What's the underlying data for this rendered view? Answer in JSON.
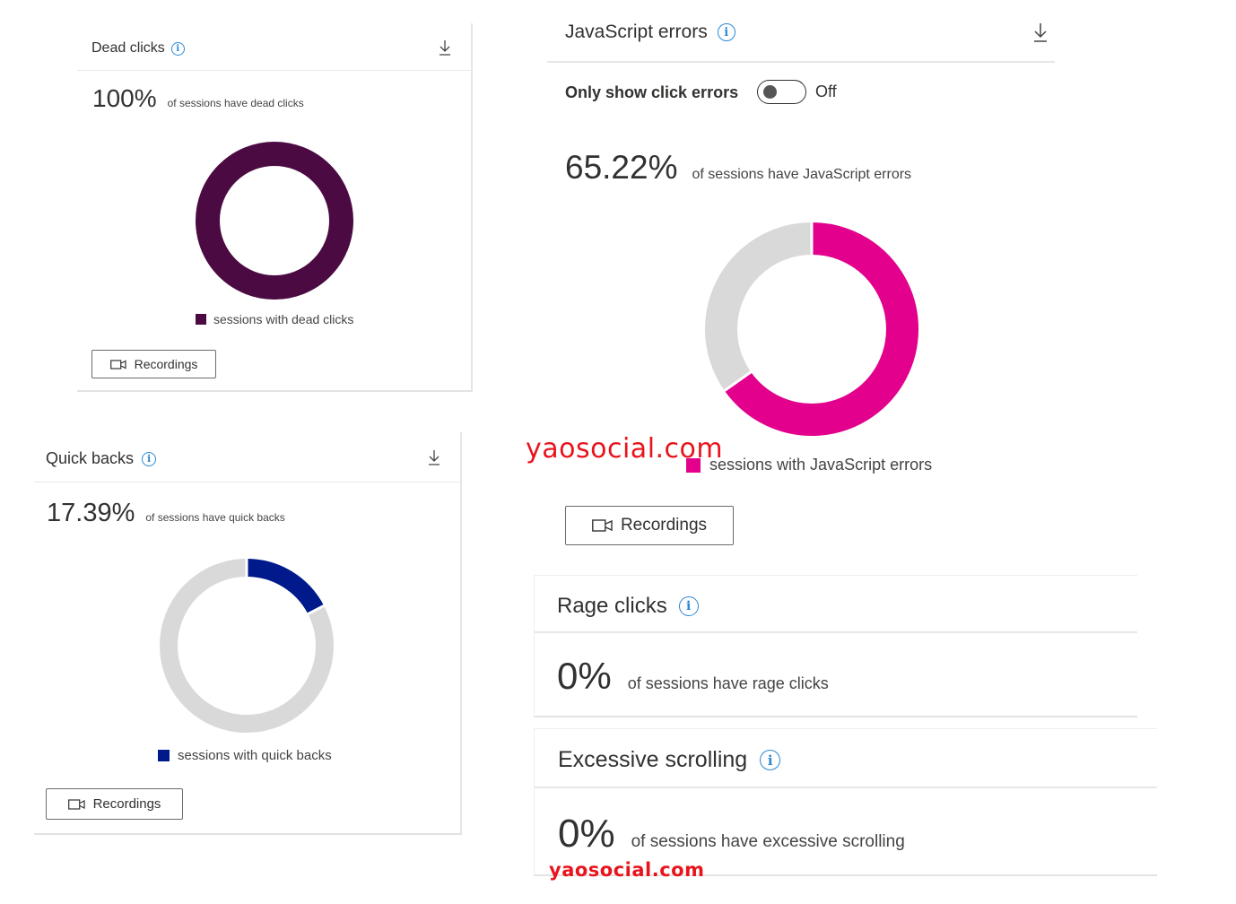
{
  "dead_clicks": {
    "title": "Dead clicks",
    "stat_value": "100%",
    "stat_text": "of sessions have dead clicks",
    "legend": "sessions with dead clicks",
    "button": "Recordings",
    "color": "#4b0a42"
  },
  "quick_backs": {
    "title": "Quick backs",
    "stat_value": "17.39%",
    "stat_text": "of sessions have quick backs",
    "legend": "sessions with quick backs",
    "button": "Recordings",
    "color": "#001a8c"
  },
  "js_errors": {
    "title": "JavaScript errors",
    "toggle_label": "Only show click errors",
    "toggle_state": "Off",
    "stat_value": "65.22%",
    "stat_text": "of sessions have JavaScript errors",
    "legend": "sessions with JavaScript errors",
    "button": "Recordings",
    "color": "#e3008c"
  },
  "rage_clicks": {
    "title": "Rage clicks",
    "stat_value": "0%",
    "stat_text": "of sessions have rage clicks"
  },
  "excessive_scrolling": {
    "title": "Excessive scrolling",
    "stat_value": "0%",
    "stat_text": "of sessions have excessive scrolling"
  },
  "watermark": "yaosocial.com",
  "chart_data": [
    {
      "type": "pie",
      "categories": [
        "sessions with dead clicks"
      ],
      "values": [
        100
      ],
      "colors": [
        "#4b0a42"
      ]
    },
    {
      "type": "pie",
      "categories": [
        "sessions with quick backs"
      ],
      "values": [
        17.39
      ],
      "colors": [
        "#001a8c"
      ]
    },
    {
      "type": "pie",
      "categories": [
        "sessions with JavaScript errors"
      ],
      "values": [
        65.22
      ],
      "colors": [
        "#e3008c"
      ]
    }
  ],
  "colors": {
    "remainder": "#d9d9d9",
    "info": "#2b88d8"
  }
}
